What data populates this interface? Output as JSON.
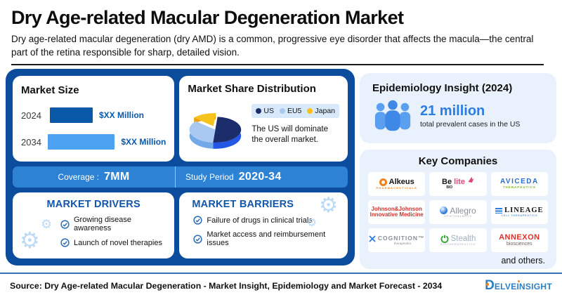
{
  "header": {
    "title": "Dry Age-related Macular Degeneration Market",
    "subtitle": "Dry age-related macular degeneration (dry AMD) is a common, progressive eye disorder that affects the macula—the central part of the retina responsible for sharp, detailed vision."
  },
  "chart_data": [
    {
      "type": "bar",
      "title": "Market Size",
      "categories": [
        "2024",
        "2034"
      ],
      "values_display": [
        "$XX Million",
        "$XX Million"
      ],
      "values_masked": true,
      "relative_lengths": [
        0.52,
        1.0
      ],
      "colors": [
        "#0a58a8",
        "#4da3f2"
      ],
      "orientation": "horizontal"
    },
    {
      "type": "pie",
      "title": "Market Share Distribution",
      "labels": [
        "US",
        "EU5",
        "Japan"
      ],
      "values": [
        50,
        35,
        15
      ],
      "unit": "percent (estimated from slice sizes)",
      "colors": [
        "#1b2e6b",
        "#a9c9f1",
        "#f6c21c"
      ],
      "side_colors": [
        "#2457e6",
        "#74a9e8",
        "#eda012"
      ],
      "explode": [
        false,
        false,
        true
      ],
      "annotation": "The US will dominate the overall market.",
      "legend_position": "right",
      "style": "3d"
    }
  ],
  "coverage": {
    "label": "Coverage :",
    "value": "7MM"
  },
  "study": {
    "label": "Study Period",
    "value": "2020-34"
  },
  "drivers": {
    "title": "MARKET DRIVERS",
    "items": [
      "Growing disease awareness",
      "Launch of novel therapies"
    ]
  },
  "barriers": {
    "title": "MARKET BARRIERS",
    "items": [
      "Failure of drugs in clinical trials",
      "Market access and reimbursement issues"
    ]
  },
  "epidemiology": {
    "title": "Epidemiology Insight (2024)",
    "value": "21 million",
    "caption": "total prevalent cases in the US"
  },
  "companies": {
    "title": "Key Companies",
    "items": [
      {
        "name": "Alkeus",
        "sub": "PHARMACEUTICALS"
      },
      {
        "name": "Belite",
        "name_parts": [
          "Be",
          "lite"
        ],
        "sub": "BIO"
      },
      {
        "name": "AVICEDA",
        "sub": "THERAPEUTICS"
      },
      {
        "name": "Johnson&Johnson",
        "sub": "Innovative Medicine"
      },
      {
        "name": "Allegro",
        "sub": "OPHTHALMICS"
      },
      {
        "name": "LINEAGE",
        "sub": "CELL THERAPEUTICS"
      },
      {
        "name": "COGNITION™",
        "sub": "therapeutics"
      },
      {
        "name": "Stealth",
        "sub": "BIOTHERAPEUTICS"
      },
      {
        "name": "ANNEXON",
        "sub": "biosciences"
      }
    ],
    "footnote": "and others."
  },
  "footer": {
    "source": "Source: Dry Age-related Macular Degeneration - Market Insight, Epidemiology and Market Forecast - 2034",
    "logo": {
      "d": "D",
      "rest1": "ELVE",
      "i": "I",
      "rest2": "NSIGHT"
    }
  },
  "colors": {
    "panel_blue": "#0b4c9c",
    "strip_blue": "#2e82d4",
    "heading_blue": "#1256aa",
    "light_card": "#e9f2fc",
    "people_blue": "#4a90e8",
    "value_blue": "#2a7de2",
    "legend_bg": "#d8e9fb",
    "gear_blue": "#bcd9f6"
  }
}
